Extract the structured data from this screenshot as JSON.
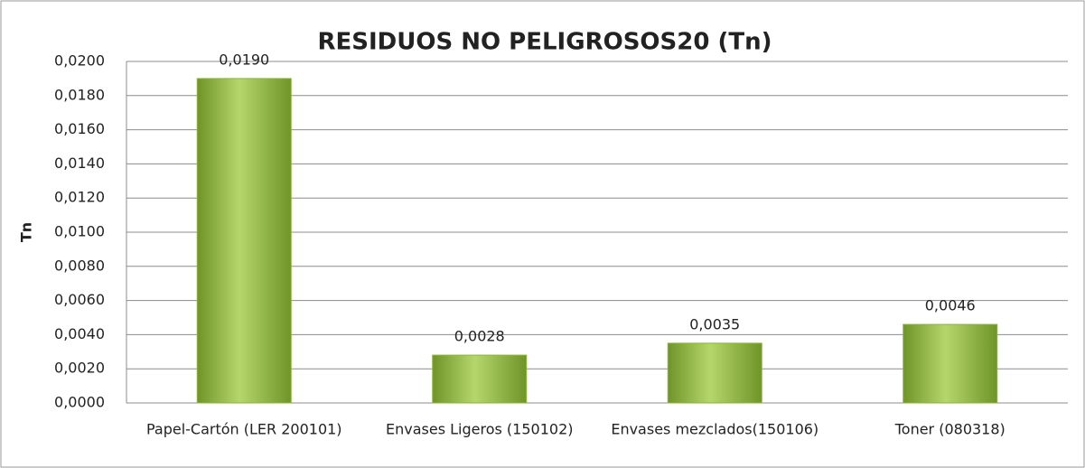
{
  "chart_data": {
    "type": "bar",
    "title": "RESIDUOS NO PELIGROSOS20 (Tn)",
    "y_label": "Tn",
    "categories": [
      "Papel-Cartón (LER 200101)",
      "Envases Ligeros (150102)",
      "Envases mezclados(150106)",
      "Toner (080318)"
    ],
    "values": [
      0.019,
      0.0028,
      0.0035,
      0.0046
    ],
    "value_labels": [
      "0,0190",
      "0,0028",
      "0,0035",
      "0,0046"
    ],
    "color": "#8cb43c",
    "ylim": [
      0,
      0.02
    ],
    "yticks": [
      {
        "value": 0,
        "label": "0,0000"
      },
      {
        "value": 0.002,
        "label": "0,0020"
      },
      {
        "value": 0.004,
        "label": "0,0040"
      },
      {
        "value": 0.006,
        "label": "0,0060"
      },
      {
        "value": 0.008,
        "label": "0,0080"
      },
      {
        "value": 0.01,
        "label": "0,0100"
      },
      {
        "value": 0.012,
        "label": "0,0120"
      },
      {
        "value": 0.014,
        "label": "0,0140"
      },
      {
        "value": 0.016,
        "label": "0,0160"
      },
      {
        "value": 0.018,
        "label": "0,0180"
      },
      {
        "value": 0.02,
        "label": "0,0200"
      }
    ],
    "grid": true
  }
}
